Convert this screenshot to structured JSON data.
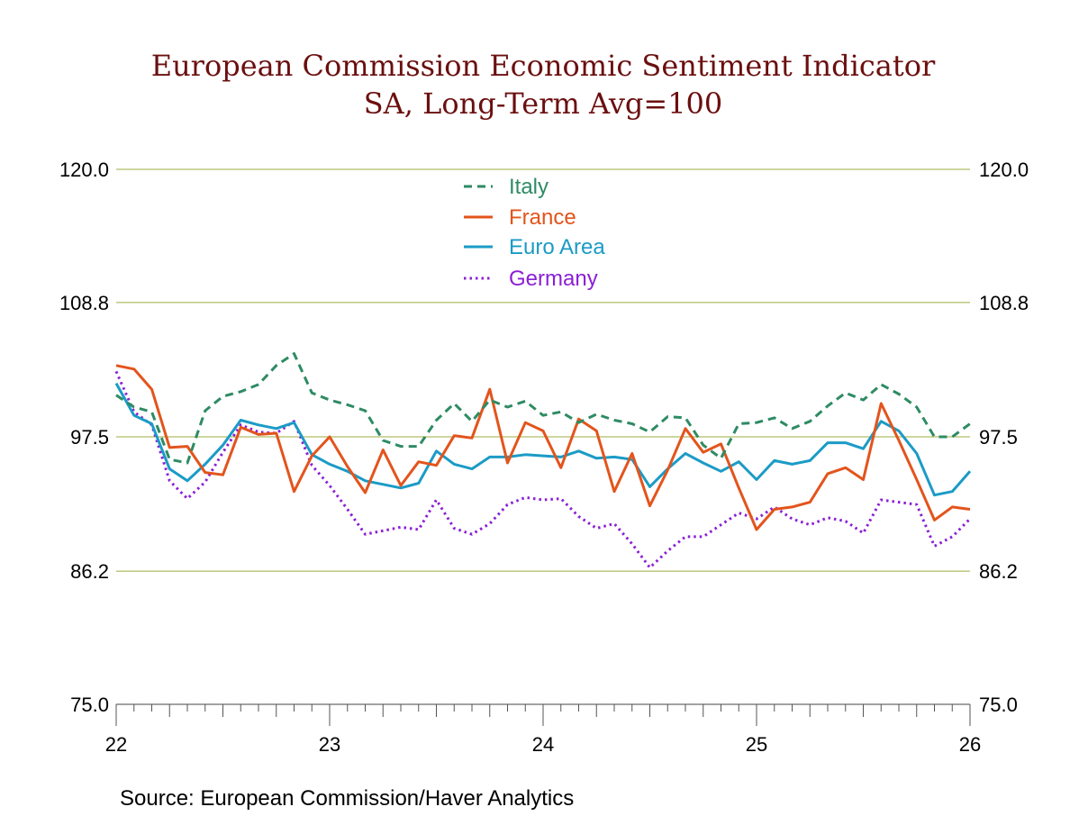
{
  "chart_data": {
    "type": "line",
    "title": "European Commission Economic Sentiment Indicator",
    "subtitle": "SA, Long-Term Avg=100",
    "source": "Source:  European Commission/Haver Analytics",
    "ylim": [
      75.0,
      120.0
    ],
    "yticks": [
      "120.0",
      "108.8",
      "97.5",
      "86.2",
      "75.0"
    ],
    "yticks_values": [
      120.0,
      108.8,
      97.5,
      86.2,
      75.0
    ],
    "xlim": [
      "2022-01",
      "2026-01"
    ],
    "xtick_labels": [
      "22",
      "23",
      "24",
      "25",
      "26"
    ],
    "xtick_dates": [
      "2022-01",
      "2023-01",
      "2024-01",
      "2025-01",
      "2026-01"
    ],
    "grid": true,
    "legend_position": "top-center",
    "start_month": "2022-01",
    "series": [
      {
        "name": "Italy",
        "color": "#2e8b63",
        "style": "dashed",
        "values": [
          101.0,
          100.0,
          99.6,
          95.6,
          95.3,
          99.7,
          100.9,
          101.3,
          101.9,
          103.5,
          104.5,
          101.2,
          100.6,
          100.2,
          99.7,
          97.2,
          96.7,
          96.7,
          98.9,
          100.3,
          98.8,
          100.6,
          100.0,
          100.5,
          99.3,
          99.6,
          98.7,
          99.4,
          98.9,
          98.6,
          97.9,
          99.2,
          99.1,
          96.8,
          95.7,
          98.6,
          98.7,
          99.1,
          98.2,
          98.8,
          100.1,
          101.2,
          100.6,
          101.9,
          101.1,
          100.0,
          97.5,
          97.5,
          98.6
        ]
      },
      {
        "name": "France",
        "color": "#e3541c",
        "style": "solid",
        "values": [
          103.5,
          103.2,
          101.5,
          96.6,
          96.7,
          94.5,
          94.3,
          98.3,
          97.7,
          97.8,
          92.9,
          95.9,
          97.5,
          95.0,
          92.8,
          96.4,
          93.4,
          95.4,
          95.1,
          97.6,
          97.4,
          101.5,
          95.3,
          98.7,
          98.0,
          94.9,
          99.0,
          98.0,
          92.9,
          96.1,
          91.7,
          94.7,
          98.2,
          96.2,
          96.9,
          93.2,
          89.7,
          91.4,
          91.6,
          92.0,
          94.4,
          94.9,
          93.9,
          100.3,
          97.2,
          93.9,
          90.5,
          91.6,
          91.4
        ]
      },
      {
        "name": "Euro Area",
        "color": "#1b9bc6",
        "style": "solid",
        "values": [
          102.0,
          99.3,
          98.6,
          94.8,
          93.8,
          95.2,
          96.8,
          98.9,
          98.5,
          98.2,
          98.7,
          96.0,
          95.2,
          94.6,
          93.8,
          93.5,
          93.2,
          93.6,
          96.3,
          95.2,
          94.8,
          95.8,
          95.8,
          96.0,
          95.9,
          95.8,
          96.3,
          95.7,
          95.8,
          95.6,
          93.3,
          94.8,
          96.1,
          95.3,
          94.6,
          95.4,
          93.9,
          95.5,
          95.2,
          95.5,
          97.0,
          97.0,
          96.5,
          98.8,
          98.0,
          96.1,
          92.6,
          92.9,
          94.6
        ]
      },
      {
        "name": "Germany",
        "color": "#8b1fd6",
        "style": "dotted",
        "values": [
          103.0,
          99.6,
          98.5,
          93.8,
          92.3,
          93.7,
          96.2,
          98.5,
          97.9,
          97.8,
          98.8,
          95.1,
          93.4,
          91.4,
          89.3,
          89.6,
          89.9,
          89.7,
          92.2,
          89.8,
          89.3,
          90.2,
          91.8,
          92.4,
          92.2,
          92.3,
          90.8,
          89.8,
          90.2,
          88.5,
          86.5,
          87.9,
          89.1,
          89.1,
          90.1,
          91.1,
          90.6,
          91.6,
          90.6,
          90.1,
          90.7,
          90.4,
          89.4,
          92.2,
          92.0,
          91.8,
          88.3,
          89.1,
          90.6
        ]
      }
    ]
  }
}
